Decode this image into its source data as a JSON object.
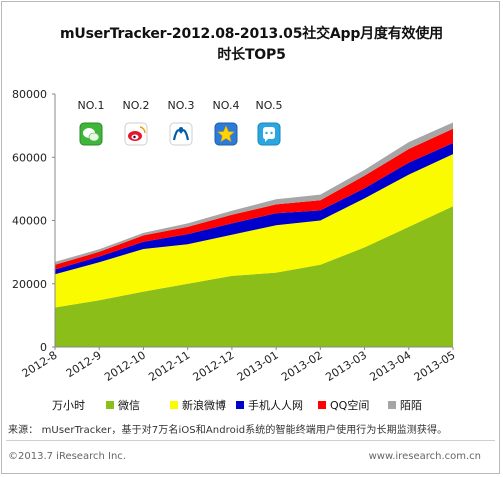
{
  "title_line1": "mUserTracker-2012.08-2013.05社交App月度有效使用",
  "title_line2": "时长TOP5",
  "chart_data": {
    "type": "area",
    "stacked": true,
    "categories": [
      "2012-8",
      "2012-9",
      "2012-10",
      "2012-11",
      "2012-12",
      "2013-01",
      "2013-02",
      "2013-03",
      "2013-04",
      "2013-05"
    ],
    "ylim": [
      0,
      80000
    ],
    "yticks": [
      0,
      20000,
      40000,
      60000,
      80000
    ],
    "ylabel": "万小时",
    "grid": false,
    "legend_position": "bottom",
    "series": [
      {
        "name": "微信",
        "color": "#8cbe1a",
        "values": [
          12500,
          14800,
          17500,
          20000,
          22500,
          23500,
          26000,
          31500,
          38000,
          44500
        ]
      },
      {
        "name": "新浪微博",
        "color": "#fbfb00",
        "values": [
          10500,
          12000,
          13500,
          12500,
          13000,
          15000,
          14000,
          15500,
          16500,
          16500
        ]
      },
      {
        "name": "手机人人网",
        "color": "#0000cc",
        "values": [
          1500,
          1800,
          2300,
          3200,
          3600,
          3800,
          3200,
          3200,
          3800,
          3500
        ]
      },
      {
        "name": "QQ空间",
        "color": "#ff0000",
        "values": [
          1500,
          1500,
          2000,
          2300,
          2700,
          2800,
          3200,
          4000,
          4300,
          4500
        ]
      },
      {
        "name": "陌陌",
        "color": "#a6a6a6",
        "values": [
          900,
          800,
          800,
          1100,
          1300,
          1600,
          1800,
          1800,
          2200,
          2000
        ]
      }
    ],
    "annotations": [
      {
        "label": "NO.1",
        "icon": "wechat-icon"
      },
      {
        "label": "NO.2",
        "icon": "weibo-icon"
      },
      {
        "label": "NO.3",
        "icon": "renren-icon"
      },
      {
        "label": "NO.4",
        "icon": "qzone-icon"
      },
      {
        "label": "NO.5",
        "icon": "momo-icon"
      }
    ]
  },
  "source": "来源： mUserTracker，基于对7万名iOS和Android系统的智能终端用户使用行为长期监测获得。",
  "footer_left": "©2013.7 iResearch Inc.",
  "footer_right": "www.iresearch.com.cn"
}
